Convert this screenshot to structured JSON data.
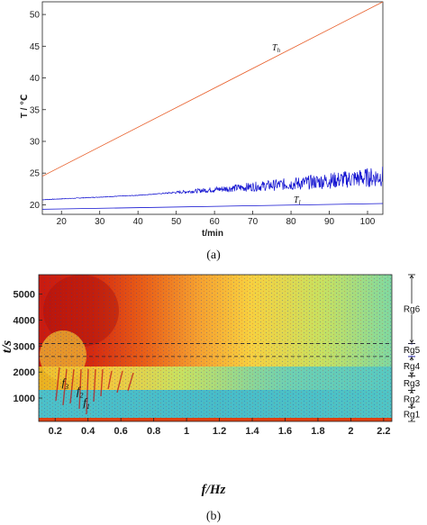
{
  "chart_data": [
    {
      "type": "line",
      "caption": "(a)",
      "xlabel": "t/min",
      "ylabel": "T / ℃",
      "xlim": [
        15,
        104
      ],
      "ylim": [
        18.5,
        52
      ],
      "xticks": [
        20,
        30,
        40,
        50,
        60,
        70,
        80,
        90,
        100
      ],
      "yticks": [
        20,
        25,
        30,
        35,
        40,
        45,
        50
      ],
      "series": [
        {
          "name": "Th",
          "label_main": "T",
          "label_sub": "h",
          "color": "#e8602c",
          "x": [
            15,
            104
          ],
          "y": [
            24.5,
            52
          ]
        },
        {
          "name": "noisy",
          "color": "#1010d0",
          "x": [
            15,
            40,
            60,
            80,
            100,
            104
          ],
          "y": [
            20.8,
            21.5,
            22.4,
            23.3,
            24.3,
            24.5
          ]
        },
        {
          "name": "Tl",
          "label_main": "T",
          "label_sub": "l",
          "color": "#1010d0",
          "x": [
            15,
            104
          ],
          "y": [
            19.3,
            20.2
          ]
        }
      ]
    },
    {
      "type": "heatmap",
      "caption": "(b)",
      "xlabel": "f/Hz",
      "ylabel": "t/s",
      "xlim": [
        0.1,
        2.25
      ],
      "ylim": [
        100,
        5750
      ],
      "xticks": [
        "0.2",
        "0.4",
        "0.6",
        "0.8",
        "1",
        "1.2",
        "1.4",
        "1.6",
        "1.8",
        "2",
        "2.2"
      ],
      "yticks": [
        "1000",
        "2000",
        "3000",
        "4000",
        "5000"
      ],
      "dashed_lines_t": [
        3100,
        2600
      ],
      "annotations": [
        {
          "main": "f",
          "sub": "3",
          "x": 0.24,
          "y": 1450
        },
        {
          "main": "f",
          "sub": "2",
          "x": 0.33,
          "y": 1130
        },
        {
          "main": "f",
          "sub": "1",
          "x": 0.37,
          "y": 690
        }
      ],
      "regions": [
        {
          "label": "Rg1",
          "from": 100,
          "to": 650,
          "color": "#111111"
        },
        {
          "label": "Rg2",
          "from": 650,
          "to": 1300,
          "color": "#111111"
        },
        {
          "label": "Rg3",
          "from": 1300,
          "to": 1850,
          "color": "#111111"
        },
        {
          "label": "Rg4",
          "from": 1850,
          "to": 2600,
          "color": "#111111"
        },
        {
          "label": "Rg5",
          "from": 2600,
          "to": 3100,
          "color": "#1a1ab0"
        },
        {
          "label": "Rg6",
          "from": 3100,
          "to": 5750,
          "color": "#111111"
        }
      ]
    }
  ]
}
